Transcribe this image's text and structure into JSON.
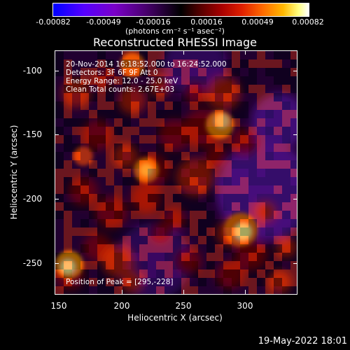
{
  "colorbar": {
    "ticks": [
      "-0.00082",
      "-0.00049",
      "-0.00016",
      "0.00016",
      "0.00049",
      "0.00082"
    ],
    "units": "(photons cm⁻² s⁻¹ asec⁻²)"
  },
  "title": "Reconstructed RHESSI Image",
  "info": {
    "line1": "20-Nov-2014 16:18:52.000 to 16:24:52.000",
    "line2": "Detectors: 3F 6F 9F  Att 0",
    "line3": "Energy Range: 12.0 - 25.0 keV",
    "line4": "Clean     Total counts: 2.67E+03",
    "peak": "Position of Peak = [295,-228]"
  },
  "axes": {
    "xlabel": "Heliocentric X (arcsec)",
    "ylabel": "Heliocentric Y (arcsec)",
    "xticks": [
      "150",
      "200",
      "250",
      "300"
    ],
    "yticks": [
      "-100",
      "-150",
      "-200",
      "-250"
    ]
  },
  "timestamp": "19-May-2022 18:01",
  "colors": {
    "background": "#000000",
    "text": "#ffffff",
    "bright_source": "#ffff90",
    "negative": "#5a1ab0"
  }
}
